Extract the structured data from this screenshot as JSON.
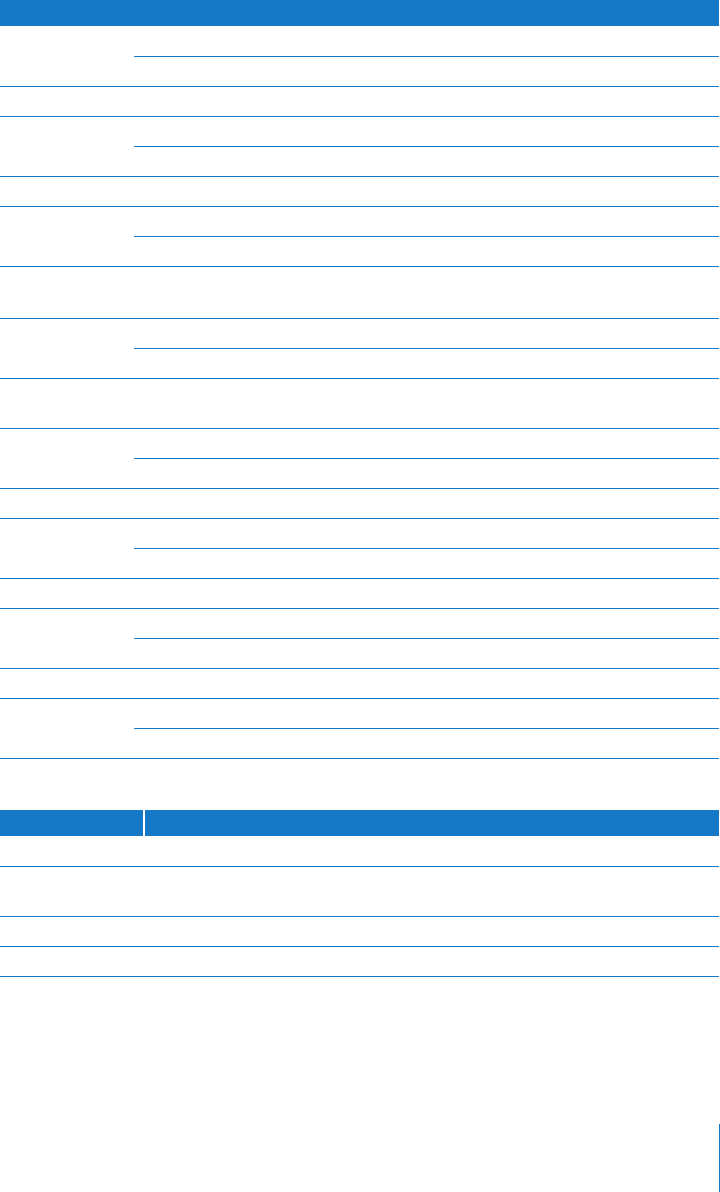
{
  "colors": {
    "accent": "#1679c8",
    "background": "#ffffff"
  },
  "table1": {
    "header": "",
    "rows": []
  },
  "table2": {
    "headers": [
      "",
      ""
    ],
    "rows": []
  }
}
